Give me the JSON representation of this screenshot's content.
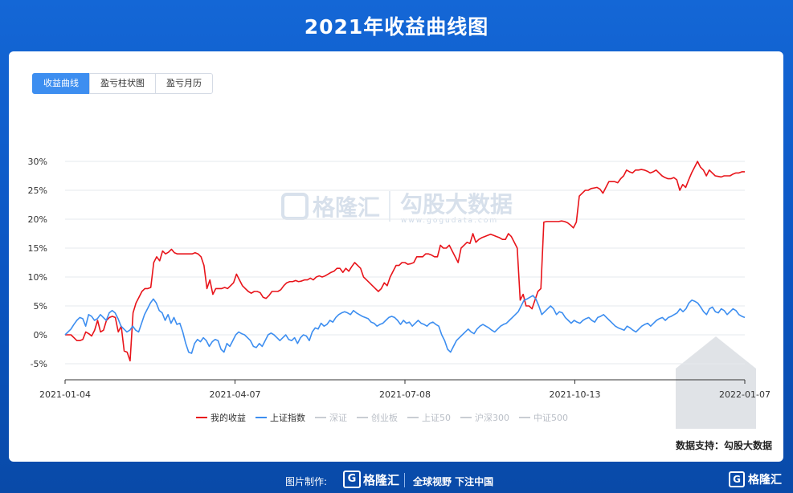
{
  "title": "2021年收益曲线图",
  "tabs": [
    {
      "label": "收益曲线",
      "active": true
    },
    {
      "label": "盈亏柱状图",
      "active": false
    },
    {
      "label": "盈亏月历",
      "active": false
    }
  ],
  "watermark": {
    "brand": "格隆汇",
    "partner": "勾股大数据",
    "partner_url": "www.gogudata.com"
  },
  "support_text": "数据支持：勾股大数据",
  "footer": {
    "made_by": "图片制作:",
    "logo_name": "格隆汇",
    "slogan": "全球视野 下注中国",
    "brand_name": "格隆汇"
  },
  "colors": {
    "my_return": "#e8141a",
    "sse_index": "#3d8ef0",
    "inactive": "#c9cdd3"
  },
  "legend": [
    {
      "name": "我的收益",
      "active": true,
      "color": "#e8141a"
    },
    {
      "name": "上证指数",
      "active": true,
      "color": "#3d8ef0"
    },
    {
      "name": "深证",
      "active": false,
      "color": "#c9cdd3"
    },
    {
      "name": "创业板",
      "active": false,
      "color": "#c9cdd3"
    },
    {
      "name": "上证50",
      "active": false,
      "color": "#c9cdd3"
    },
    {
      "name": "沪深300",
      "active": false,
      "color": "#c9cdd3"
    },
    {
      "name": "中证500",
      "active": false,
      "color": "#c9cdd3"
    }
  ],
  "chart_data": {
    "type": "line",
    "title": "2021年收益曲线图",
    "xlabel": "",
    "ylabel": "",
    "ylim": [
      -5,
      30
    ],
    "yticks": [
      "30%",
      "25%",
      "20%",
      "15%",
      "10%",
      "5%",
      "0%",
      "-5%"
    ],
    "ytick_values": [
      30,
      25,
      20,
      15,
      10,
      5,
      0,
      -5
    ],
    "xticks": [
      "2021-01-04",
      "2021-04-07",
      "2021-07-08",
      "2021-10-13",
      "2022-01-07"
    ],
    "grid": true,
    "legend_position": "bottom",
    "series": [
      {
        "name": "我的收益",
        "color": "#e8141a",
        "values": [
          0,
          0,
          0,
          -0.5,
          -1,
          -1,
          -0.8,
          0.5,
          0.2,
          -0.2,
          0.8,
          2.5,
          0.5,
          0.8,
          2.5,
          3,
          3.2,
          3,
          0.5,
          1.5,
          -2.8,
          -3,
          -4.5,
          3.8,
          5.5,
          6.5,
          7.5,
          8,
          8,
          8.2,
          12.5,
          13.5,
          12.8,
          14.5,
          14,
          14.3,
          14.8,
          14.2,
          14,
          14,
          14,
          14,
          14,
          14,
          14.2,
          14,
          13.5,
          12,
          8,
          9.5,
          7,
          8,
          8,
          8,
          8.2,
          8,
          8.5,
          9,
          10.5,
          9.5,
          8.5,
          8,
          7.5,
          7.2,
          7.5,
          7.5,
          7.3,
          6.5,
          6.3,
          6.8,
          7.5,
          7.5,
          7.5,
          7.8,
          8.5,
          9,
          9.2,
          9.2,
          9.4,
          9.2,
          9.3,
          9.5,
          9.5,
          9.8,
          9.5,
          10,
          10.2,
          10,
          10.2,
          10.5,
          10.8,
          11,
          11.5,
          11.5,
          10.8,
          11.5,
          11,
          11.8,
          12.5,
          12,
          11.5,
          10,
          9.5,
          9,
          8.5,
          8,
          7.5,
          8,
          9,
          8.5,
          10,
          11,
          12,
          12,
          12.5,
          12.5,
          12.2,
          12.3,
          12.5,
          13.5,
          13.5,
          13.5,
          14,
          14,
          13.8,
          13.5,
          13.5,
          15.5,
          15,
          15,
          15.5,
          14.5,
          13.5,
          12.5,
          15,
          15.5,
          16,
          15.8,
          17.5,
          16,
          16.5,
          16.8,
          17,
          17.2,
          17.4,
          17.2,
          17,
          16.8,
          16.5,
          16.5,
          17.5,
          17,
          16,
          15,
          6,
          7,
          5,
          5,
          4.5,
          6,
          7.5,
          8,
          19.5,
          19.6,
          19.6,
          19.6,
          19.6,
          19.6,
          19.7,
          19.6,
          19.4,
          19,
          18.5,
          19.5,
          24,
          24.5,
          25,
          25,
          25.3,
          25.4,
          25.5,
          25.2,
          24.5,
          25.5,
          26.5,
          26.5,
          26.5,
          26.3,
          27,
          27.5,
          28.5,
          28.2,
          28,
          28.5,
          28.5,
          28.6,
          28.5,
          28.3,
          28,
          28.2,
          28.5,
          28,
          27.5,
          27.2,
          27,
          27,
          27.2,
          26.8,
          25,
          26,
          25.5,
          26.8,
          28,
          29,
          30,
          29,
          28.5,
          27.5,
          28.5,
          28,
          27.5,
          27.4,
          27.3,
          27.5,
          27.5,
          27.5,
          27.8,
          28,
          28,
          28.2,
          28.2
        ]
      },
      {
        "name": "上证指数",
        "color": "#3d8ef0",
        "values": [
          0,
          0.5,
          1,
          1.8,
          2.5,
          3,
          2.8,
          1.5,
          3.5,
          3.2,
          2.5,
          2.8,
          3.5,
          3,
          2.5,
          3.8,
          4.2,
          3.8,
          2.8,
          1.5,
          1,
          0.5,
          0.8,
          1.5,
          0.8,
          0.5,
          2,
          3.5,
          4.5,
          5.5,
          6.2,
          5.5,
          4.2,
          3.8,
          2.5,
          3.5,
          2,
          3,
          1.8,
          2,
          0.5,
          -1.5,
          -3,
          -3.2,
          -1.5,
          -0.8,
          -1.2,
          -0.5,
          -1,
          -2,
          -1.2,
          -0.8,
          -1,
          -2.5,
          -3,
          -1.5,
          -2,
          -1,
          0,
          0.5,
          0.2,
          0,
          -0.5,
          -1,
          -2,
          -2.2,
          -1.5,
          -2,
          -1,
          0,
          0.3,
          0,
          -0.5,
          -1,
          -0.5,
          0,
          -0.8,
          -1,
          -0.5,
          -1.5,
          -0.5,
          0,
          -0.2,
          -1,
          0.5,
          1.2,
          1,
          2,
          1.5,
          1.8,
          2.5,
          2.2,
          3,
          3.5,
          3.8,
          4,
          3.8,
          3.5,
          4.2,
          3.8,
          3.5,
          3.2,
          3,
          2.8,
          2.2,
          2,
          1.5,
          1.8,
          2,
          2.5,
          3,
          3.2,
          3,
          2.5,
          1.8,
          2.5,
          2,
          2.2,
          1.5,
          2,
          2.5,
          2,
          1.8,
          1.5,
          2,
          2.2,
          1.8,
          1.5,
          0,
          -1,
          -2.5,
          -3,
          -2,
          -1,
          -0.5,
          0,
          0.5,
          1,
          0.5,
          0.2,
          1,
          1.5,
          1.8,
          1.5,
          1.2,
          0.8,
          0.5,
          1,
          1.5,
          1.8,
          2,
          2.5,
          3,
          3.5,
          4,
          5,
          6,
          6.2,
          6.5,
          6.8,
          6.2,
          5,
          3.5,
          4,
          4.5,
          5,
          4.5,
          3.5,
          4,
          3.8,
          3,
          2.5,
          2,
          2.5,
          2.2,
          2,
          2.5,
          2.8,
          3,
          2.5,
          2.2,
          3,
          3.2,
          3.5,
          3,
          2.5,
          2,
          1.5,
          1.2,
          1,
          0.8,
          1.5,
          1.2,
          0.8,
          0.5,
          1,
          1.5,
          1.8,
          2,
          1.5,
          2,
          2.5,
          2.8,
          3,
          2.5,
          3,
          3.2,
          3.5,
          3.8,
          4.5,
          4,
          4.5,
          5.5,
          6,
          5.8,
          5.5,
          4.8,
          4,
          3.5,
          4.5,
          4.8,
          4,
          3.8,
          4.5,
          4.2,
          3.5,
          4,
          4.5,
          4.2,
          3.5,
          3.2,
          3
        ]
      }
    ]
  }
}
